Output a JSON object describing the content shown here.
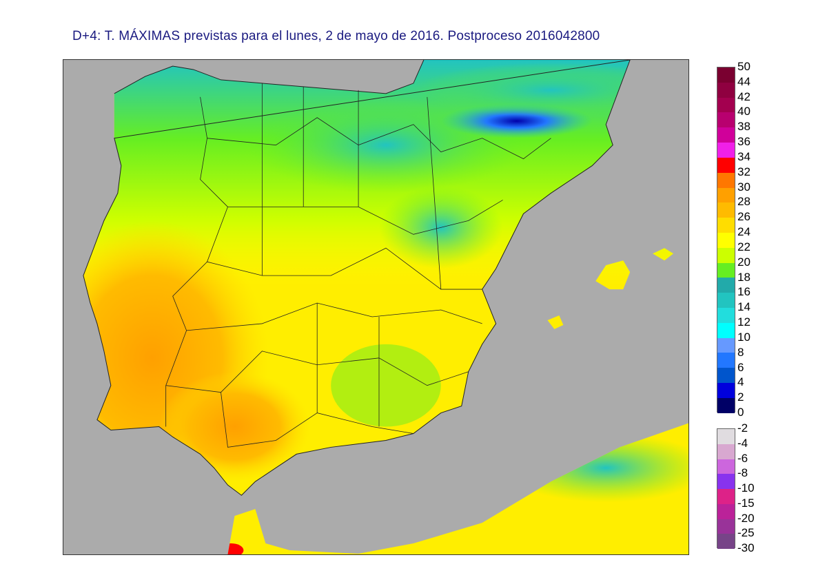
{
  "title": "D+4: T. MÁXIMAS previstas para el lunes, 2 de mayo de 2016. Postproceso 2016042800",
  "map": {
    "sea_color": "#ababab",
    "regions": [
      "Iberian Peninsula",
      "Balearic Islands",
      "North Africa",
      "Southern France"
    ]
  },
  "legend_positive": {
    "labels": [
      "50",
      "44",
      "42",
      "40",
      "38",
      "36",
      "34",
      "32",
      "30",
      "28",
      "26",
      "24",
      "22",
      "20",
      "18",
      "16",
      "14",
      "12",
      "10",
      "8",
      "6",
      "4",
      "2",
      "0"
    ],
    "colors": [
      "#7a0030",
      "#8f0040",
      "#a3004f",
      "#b8006f",
      "#d0009a",
      "#f020e8",
      "#ff0000",
      "#ff7700",
      "#ffa000",
      "#ffbb00",
      "#ffdd00",
      "#ffff00",
      "#ccff00",
      "#66ee22",
      "#22aaaa",
      "#22c4c0",
      "#22dddd",
      "#00ffff",
      "#6699ff",
      "#2277ff",
      "#0055cc",
      "#0000dd",
      "#000066"
    ]
  },
  "legend_negative": {
    "labels": [
      "-2",
      "-4",
      "-6",
      "-8",
      "-10",
      "-15",
      "-20",
      "-25",
      "-30"
    ],
    "colors": [
      "#e0dce0",
      "#d8a8d0",
      "#cc66dd",
      "#8833ee",
      "#dd2288",
      "#bb2299",
      "#993399",
      "#774488"
    ]
  }
}
